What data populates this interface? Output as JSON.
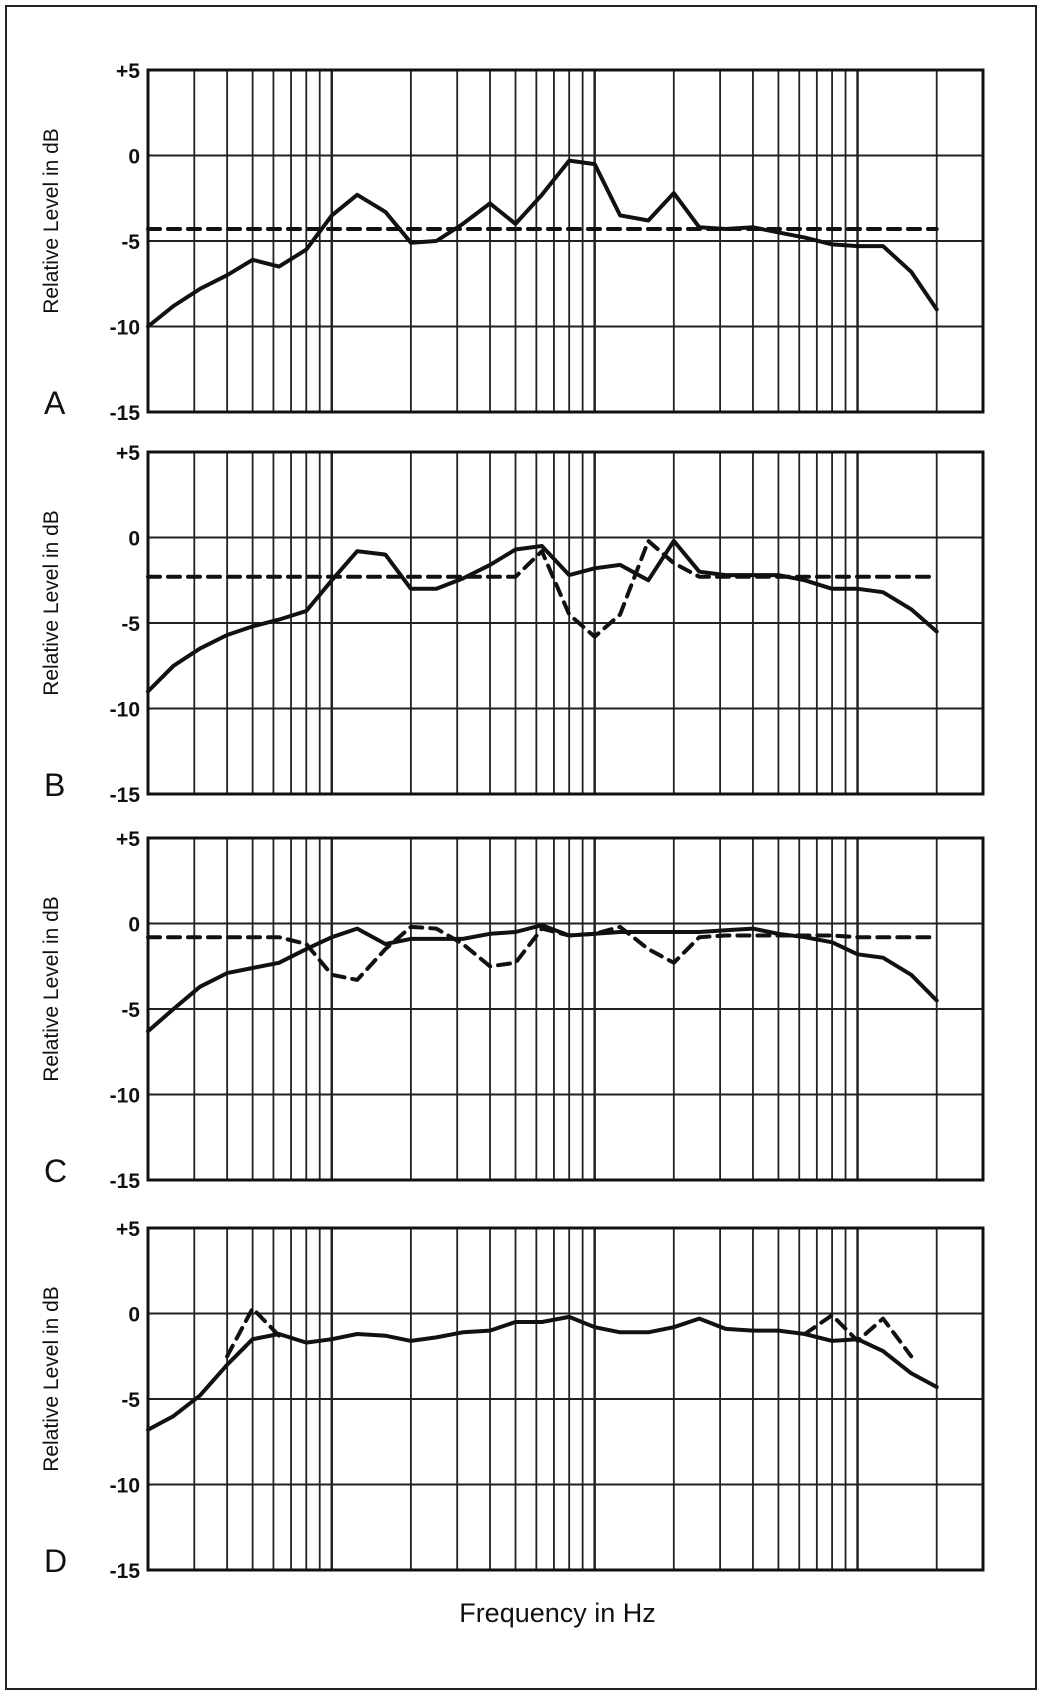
{
  "chart_data": [
    {
      "type": "line",
      "label": "A",
      "ylabel": "Relative Level in dB",
      "log_x": true,
      "grid": true,
      "xlim": [
        20,
        30000
      ],
      "ylim": [
        -15,
        5
      ],
      "yticks": [
        {
          "value": 5,
          "label": "+5"
        },
        0,
        -5,
        -10,
        -15
      ],
      "x": [
        20,
        25,
        31.5,
        40,
        50,
        63,
        80,
        100,
        125,
        160,
        200,
        250,
        315,
        400,
        500,
        630,
        800,
        1000,
        1250,
        1600,
        2000,
        2500,
        3150,
        4000,
        5000,
        6300,
        8000,
        10000,
        12500,
        16000,
        20000
      ],
      "series": [
        {
          "color": "#111111",
          "style": "solid",
          "values": [
            -10,
            -8.8,
            -7.8,
            -7,
            -6.1,
            -6.5,
            -5.5,
            -3.5,
            -2.3,
            -3.3,
            -5.1,
            -5,
            -4,
            -2.8,
            -4,
            -2.3,
            -0.3,
            -0.5,
            -3.5,
            -3.8,
            -2.2,
            -4.2,
            -4.3,
            -4.2,
            -4.5,
            -4.8,
            -5.2,
            -5.3,
            -5.3,
            -6.8,
            -9
          ]
        },
        {
          "color": "#111111",
          "style": "dashed",
          "values": [
            -4.3,
            -4.3,
            -4.3,
            -4.3,
            -4.3,
            -4.3,
            -4.3,
            -4.3,
            -4.3,
            -4.3,
            -4.3,
            -4.3,
            -4.3,
            -4.3,
            -4.3,
            -4.3,
            -4.3,
            -4.3,
            -4.3,
            -4.3,
            -4.3,
            -4.3,
            -4.3,
            -4.3,
            -4.3,
            -4.3,
            -4.3,
            -4.3,
            -4.3,
            -4.3,
            -4.3
          ]
        }
      ]
    },
    {
      "type": "line",
      "label": "B",
      "ylabel": "Relative Level in dB",
      "log_x": true,
      "grid": true,
      "xlim": [
        20,
        30000
      ],
      "ylim": [
        -15,
        5
      ],
      "yticks": [
        {
          "value": 5,
          "label": "+5"
        },
        0,
        -5,
        -10,
        -15
      ],
      "x": [
        20,
        25,
        31.5,
        40,
        50,
        63,
        80,
        100,
        125,
        160,
        200,
        250,
        315,
        400,
        500,
        630,
        800,
        1000,
        1250,
        1600,
        2000,
        2500,
        3150,
        4000,
        5000,
        6300,
        8000,
        10000,
        12500,
        16000,
        20000
      ],
      "series": [
        {
          "color": "#111111",
          "style": "solid",
          "values": [
            -9,
            -7.5,
            -6.5,
            -5.7,
            -5.2,
            -4.8,
            -4.3,
            -2.5,
            -0.8,
            -1,
            -3,
            -3,
            -2.4,
            -1.6,
            -0.7,
            -0.5,
            -2.2,
            -1.8,
            -1.6,
            -2.5,
            -0.2,
            -2,
            -2.2,
            -2.2,
            -2.2,
            -2.5,
            -3,
            -3,
            -3.2,
            -4.2,
            -5.5
          ]
        },
        {
          "color": "#111111",
          "style": "dashed",
          "values": [
            -2.3,
            -2.3,
            -2.3,
            -2.3,
            -2.3,
            -2.3,
            -2.3,
            -2.3,
            -2.3,
            -2.3,
            -2.3,
            -2.3,
            -2.3,
            -2.3,
            -2.3,
            -0.8,
            -4.5,
            -5.8,
            -4.5,
            -0.2,
            -1.5,
            -2.3,
            -2.3,
            -2.3,
            -2.3,
            -2.3,
            -2.3,
            -2.3,
            -2.3,
            -2.3,
            -2.3
          ]
        }
      ]
    },
    {
      "type": "line",
      "label": "C",
      "ylabel": "Relative Level in dB",
      "log_x": true,
      "grid": true,
      "xlim": [
        20,
        30000
      ],
      "ylim": [
        -15,
        5
      ],
      "yticks": [
        {
          "value": 5,
          "label": "+5"
        },
        0,
        -5,
        -10,
        -15
      ],
      "x": [
        20,
        25,
        31.5,
        40,
        50,
        63,
        80,
        100,
        125,
        160,
        200,
        250,
        315,
        400,
        500,
        630,
        800,
        1000,
        1250,
        1600,
        2000,
        2500,
        3150,
        4000,
        5000,
        6300,
        8000,
        10000,
        12500,
        16000,
        20000
      ],
      "series": [
        {
          "color": "#111111",
          "style": "solid",
          "values": [
            -6.3,
            -5,
            -3.7,
            -2.9,
            -2.6,
            -2.3,
            -1.5,
            -0.8,
            -0.3,
            -1.2,
            -0.9,
            -0.9,
            -0.9,
            -0.6,
            -0.5,
            -0.1,
            -0.7,
            -0.6,
            -0.5,
            -0.5,
            -0.5,
            -0.5,
            -0.4,
            -0.3,
            -0.6,
            -0.8,
            -1.1,
            -1.8,
            -2,
            -3,
            -4.5
          ]
        },
        {
          "color": "#111111",
          "style": "dashed",
          "values": [
            -0.8,
            -0.8,
            -0.8,
            -0.8,
            -0.8,
            -0.8,
            -1.2,
            -3,
            -3.3,
            -1.5,
            -0.2,
            -0.3,
            -1.2,
            -2.5,
            -2.3,
            -0.3,
            -0.7,
            -0.6,
            -0.2,
            -1.5,
            -2.3,
            -0.8,
            -0.7,
            -0.7,
            -0.7,
            -0.7,
            -0.7,
            -0.8,
            -0.8,
            -0.8,
            -0.8
          ]
        }
      ]
    },
    {
      "type": "line",
      "label": "D",
      "ylabel": "Relative Level in dB",
      "xlabel": "Frequency in Hz",
      "log_x": true,
      "grid": true,
      "xlim": [
        20,
        30000
      ],
      "ylim": [
        -15,
        5
      ],
      "yticks": [
        {
          "value": 5,
          "label": "+5"
        },
        0,
        -5,
        -10,
        -15
      ],
      "x": [
        20,
        25,
        31.5,
        40,
        50,
        63,
        80,
        100,
        125,
        160,
        200,
        250,
        315,
        400,
        500,
        630,
        800,
        1000,
        1250,
        1600,
        2000,
        2500,
        3150,
        4000,
        5000,
        6300,
        8000,
        10000,
        12500,
        16000,
        20000
      ],
      "series": [
        {
          "color": "#111111",
          "style": "solid",
          "values": [
            -6.8,
            -6,
            -4.8,
            -3,
            -1.5,
            -1.2,
            -1.7,
            -1.5,
            -1.2,
            -1.3,
            -1.6,
            -1.4,
            -1.1,
            -1,
            -0.5,
            -0.5,
            -0.2,
            -0.8,
            -1.1,
            -1.1,
            -0.8,
            -0.3,
            -0.9,
            -1,
            -1,
            -1.2,
            -1.6,
            -1.5,
            -2.2,
            -3.5,
            -4.3
          ]
        },
        {
          "color": "#111111",
          "style": "dashed",
          "values": [
            null,
            null,
            null,
            -2.5,
            0.3,
            -1.3,
            null,
            null,
            null,
            null,
            null,
            null,
            null,
            null,
            null,
            null,
            null,
            null,
            null,
            null,
            null,
            null,
            null,
            null,
            null,
            -1.2,
            -0.1,
            -1.6,
            -0.3,
            -2.5,
            null
          ]
        }
      ]
    }
  ]
}
